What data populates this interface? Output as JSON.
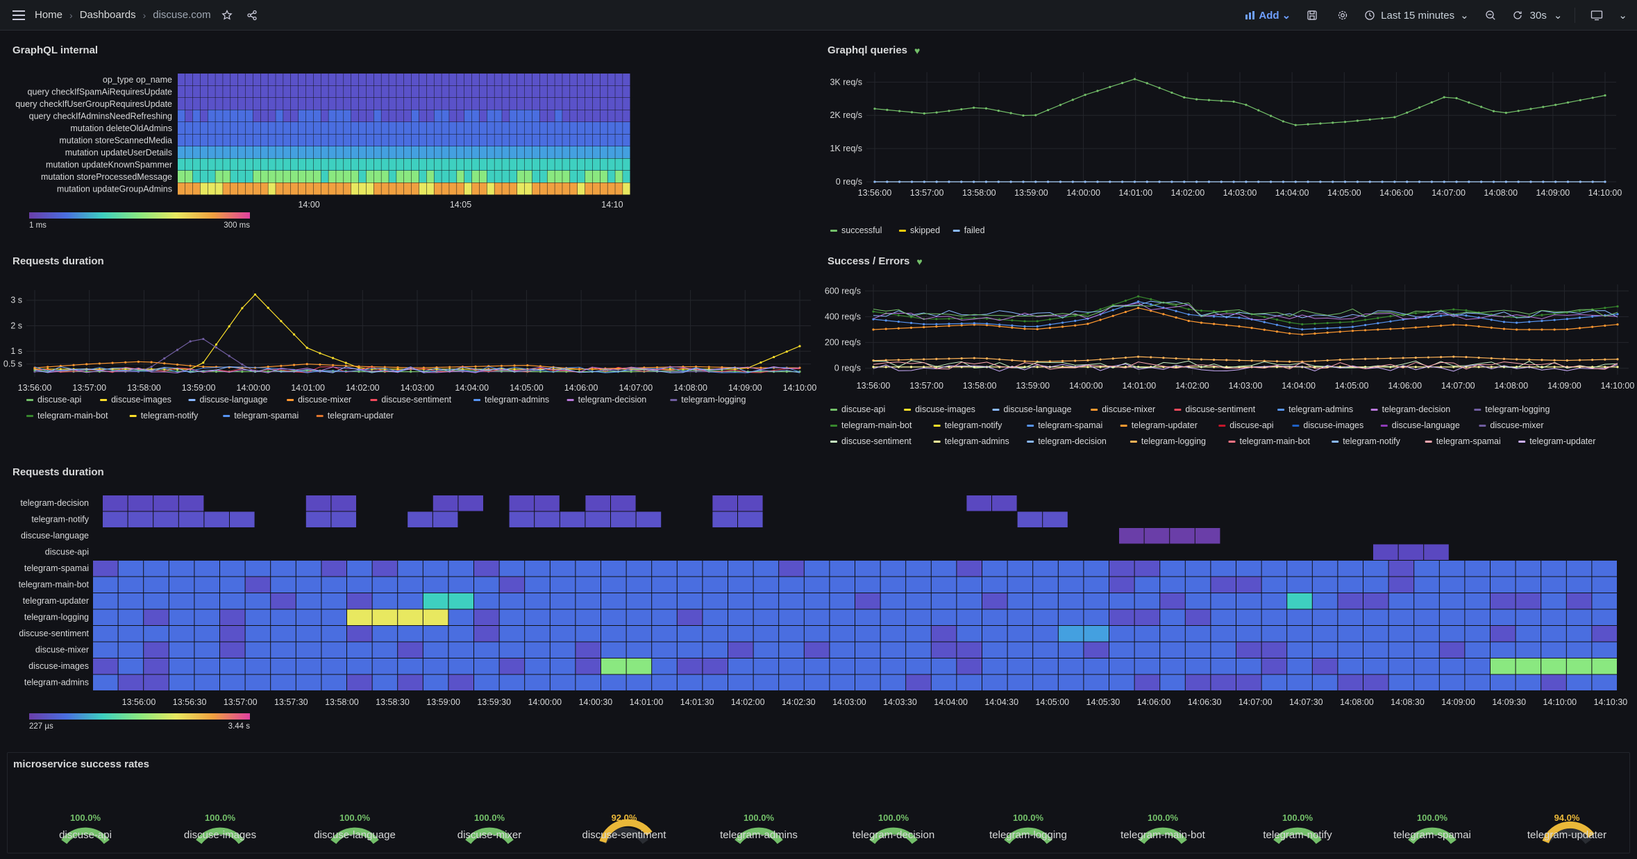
{
  "header": {
    "breadcrumbs": [
      "Home",
      "Dashboards",
      "discuse.com"
    ],
    "add_label": "Add",
    "time_range": "Last 15 minutes",
    "refresh_interval": "30s",
    "accent": "#6e9fff"
  },
  "panels": {
    "graphql_internal": {
      "title": "GraphQL internal",
      "row_labels": [
        "op_type op_name",
        "query checkIfSpamAiRequiresUpdate",
        "query checkIfUserGroupRequiresUpdate",
        "query checkIfAdminsNeedRefreshing",
        "mutation deleteOldAdmins",
        "mutation storeScannedMedia",
        "mutation updateUserDetails",
        "mutation updateKnownSpammer",
        "mutation storeProcessedMessage",
        "mutation updateGroupAdmins"
      ],
      "x_ticks": [
        "14:00",
        "14:05",
        "14:10"
      ],
      "scale_min": "1 ms",
      "scale_max": "300 ms"
    },
    "graphql_queries": {
      "title": "Graphql queries",
      "y_ticks": [
        "3K req/s",
        "2K req/s",
        "1K req/s",
        "0 req/s"
      ],
      "x_ticks": [
        "13:56:00",
        "13:57:00",
        "13:58:00",
        "13:59:00",
        "14:00:00",
        "14:01:00",
        "14:02:00",
        "14:03:00",
        "14:04:00",
        "14:05:00",
        "14:06:00",
        "14:07:00",
        "14:08:00",
        "14:09:00",
        "14:10:00"
      ],
      "legend": [
        {
          "name": "successful",
          "color": "#73bf69"
        },
        {
          "name": "skipped",
          "color": "#f2cc0c"
        },
        {
          "name": "failed",
          "color": "#8ab8ff"
        }
      ]
    },
    "requests_duration_ts": {
      "title": "Requests duration",
      "y_ticks": [
        "3 s",
        "2 s",
        "1 s",
        "0.5 s"
      ],
      "x_ticks": [
        "13:56:00",
        "13:57:00",
        "13:58:00",
        "13:59:00",
        "14:00:00",
        "14:01:00",
        "14:02:00",
        "14:03:00",
        "14:04:00",
        "14:05:00",
        "14:06:00",
        "14:07:00",
        "14:08:00",
        "14:09:00",
        "14:10:00"
      ],
      "legend": [
        {
          "name": "discuse-api",
          "color": "#73bf69"
        },
        {
          "name": "discuse-images",
          "color": "#fade2a"
        },
        {
          "name": "discuse-language",
          "color": "#8ab8ff"
        },
        {
          "name": "discuse-mixer",
          "color": "#ff9830"
        },
        {
          "name": "discuse-sentiment",
          "color": "#f2495c"
        },
        {
          "name": "telegram-admins",
          "color": "#5794f2"
        },
        {
          "name": "telegram-decision",
          "color": "#b877d9"
        },
        {
          "name": "telegram-logging",
          "color": "#705da0"
        },
        {
          "name": "telegram-main-bot",
          "color": "#37872d"
        },
        {
          "name": "telegram-notify",
          "color": "#fade2a"
        },
        {
          "name": "telegram-spamai",
          "color": "#5794f2"
        },
        {
          "name": "telegram-updater",
          "color": "#e0752d"
        }
      ]
    },
    "success_errors": {
      "title": "Success / Errors",
      "y_ticks": [
        "600 req/s",
        "400 req/s",
        "200 req/s",
        "0 req/s"
      ],
      "x_ticks": [
        "13:56:00",
        "13:57:00",
        "13:58:00",
        "13:59:00",
        "14:00:00",
        "14:01:00",
        "14:02:00",
        "14:03:00",
        "14:04:00",
        "14:05:00",
        "14:06:00",
        "14:07:00",
        "14:08:00",
        "14:09:00",
        "14:10:00"
      ],
      "legend": [
        {
          "name": "discuse-api",
          "color": "#73bf69"
        },
        {
          "name": "discuse-images",
          "color": "#fade2a"
        },
        {
          "name": "discuse-language",
          "color": "#8ab8ff"
        },
        {
          "name": "discuse-mixer",
          "color": "#ff9830"
        },
        {
          "name": "discuse-sentiment",
          "color": "#f2495c"
        },
        {
          "name": "telegram-admins",
          "color": "#5794f2"
        },
        {
          "name": "telegram-decision",
          "color": "#b877d9"
        },
        {
          "name": "telegram-logging",
          "color": "#705da0"
        },
        {
          "name": "telegram-main-bot",
          "color": "#37872d"
        },
        {
          "name": "telegram-notify",
          "color": "#fade2a"
        },
        {
          "name": "telegram-spamai",
          "color": "#5794f2"
        },
        {
          "name": "telegram-updater",
          "color": "#ff9830"
        },
        {
          "name": "discuse-api",
          "color": "#c4162a"
        },
        {
          "name": "discuse-images",
          "color": "#1f60c4"
        },
        {
          "name": "discuse-language",
          "color": "#8f3bb8"
        },
        {
          "name": "discuse-mixer",
          "color": "#705da0"
        },
        {
          "name": "discuse-sentiment",
          "color": "#c8f2c2"
        },
        {
          "name": "telegram-admins",
          "color": "#fff899"
        },
        {
          "name": "telegram-decision",
          "color": "#8ab8ff"
        },
        {
          "name": "telegram-logging",
          "color": "#ffb357"
        },
        {
          "name": "telegram-main-bot",
          "color": "#ff7383"
        },
        {
          "name": "telegram-notify",
          "color": "#8ab8ff"
        },
        {
          "name": "telegram-spamai",
          "color": "#ffa6b0"
        },
        {
          "name": "telegram-updater",
          "color": "#cdb0ff"
        }
      ]
    },
    "requests_duration_heatmap": {
      "title": "Requests duration",
      "row_labels": [
        "telegram-decision",
        "telegram-notify",
        "discuse-language",
        "discuse-api",
        "telegram-spamai",
        "telegram-main-bot",
        "telegram-updater",
        "telegram-logging",
        "discuse-sentiment",
        "discuse-mixer",
        "discuse-images",
        "telegram-admins"
      ],
      "x_ticks": [
        "13:56:00",
        "13:56:30",
        "13:57:00",
        "13:57:30",
        "13:58:00",
        "13:58:30",
        "13:59:00",
        "13:59:30",
        "14:00:00",
        "14:00:30",
        "14:01:00",
        "14:01:30",
        "14:02:00",
        "14:02:30",
        "14:03:00",
        "14:03:30",
        "14:04:00",
        "14:04:30",
        "14:05:00",
        "14:05:30",
        "14:06:00",
        "14:06:30",
        "14:07:00",
        "14:07:30",
        "14:08:00",
        "14:08:30",
        "14:09:00",
        "14:09:30",
        "14:10:00",
        "14:10:30"
      ],
      "scale_min": "227 µs",
      "scale_max": "3.44 s"
    },
    "success_rates": {
      "title": "microservice success rates",
      "gauges": [
        {
          "name": "discuse-api",
          "value": "100.0%",
          "pct": 100,
          "color": "#73bf69"
        },
        {
          "name": "discuse-images",
          "value": "100.0%",
          "pct": 100,
          "color": "#73bf69"
        },
        {
          "name": "discuse-language",
          "value": "100.0%",
          "pct": 100,
          "color": "#73bf69"
        },
        {
          "name": "discuse-mixer",
          "value": "100.0%",
          "pct": 100,
          "color": "#73bf69"
        },
        {
          "name": "discuse-sentiment",
          "value": "92.0%",
          "pct": 92,
          "color": "#eab839"
        },
        {
          "name": "telegram-admins",
          "value": "100.0%",
          "pct": 100,
          "color": "#73bf69"
        },
        {
          "name": "telegram-decision",
          "value": "100.0%",
          "pct": 100,
          "color": "#73bf69"
        },
        {
          "name": "telegram-logging",
          "value": "100.0%",
          "pct": 100,
          "color": "#73bf69"
        },
        {
          "name": "telegram-main-bot",
          "value": "100.0%",
          "pct": 100,
          "color": "#73bf69"
        },
        {
          "name": "telegram-notify",
          "value": "100.0%",
          "pct": 100,
          "color": "#73bf69"
        },
        {
          "name": "telegram-spamai",
          "value": "100.0%",
          "pct": 100,
          "color": "#73bf69"
        },
        {
          "name": "telegram-updater",
          "value": "94.0%",
          "pct": 94,
          "color": "#eab839"
        }
      ]
    }
  },
  "chart_data": [
    {
      "type": "heatmap",
      "title": "GraphQL internal",
      "rows": [
        "op_type op_name",
        "query checkIfSpamAiRequiresUpdate",
        "query checkIfUserGroupRequiresUpdate",
        "query checkIfAdminsNeedRefreshing",
        "mutation deleteOldAdmins",
        "mutation storeScannedMedia",
        "mutation updateUserDetails",
        "mutation updateKnownSpammer",
        "mutation storeProcessedMessage",
        "mutation updateGroupAdmins"
      ],
      "row_levels": [
        0.05,
        0.1,
        0.12,
        0.15,
        0.2,
        0.25,
        0.35,
        0.5,
        0.6,
        0.85
      ],
      "x_ticks": [
        "14:00",
        "14:05",
        "14:10"
      ],
      "scale": [
        "1 ms",
        "300 ms"
      ]
    },
    {
      "type": "line",
      "title": "Graphql queries",
      "ylim": [
        0,
        3300
      ],
      "x": [
        "13:56:00",
        "13:57:00",
        "13:58:00",
        "13:59:00",
        "14:00:00",
        "14:01:00",
        "14:02:00",
        "14:03:00",
        "14:04:00",
        "14:05:00",
        "14:06:00",
        "14:07:00",
        "14:08:00",
        "14:09:00",
        "14:10:00"
      ],
      "series": [
        {
          "name": "successful",
          "values": [
            2200,
            2050,
            2250,
            1950,
            2600,
            3100,
            2500,
            2400,
            1700,
            1800,
            1950,
            2600,
            2050,
            2300,
            2600
          ]
        },
        {
          "name": "skipped",
          "values": [
            0,
            0,
            0,
            0,
            0,
            0,
            0,
            0,
            0,
            0,
            0,
            0,
            0,
            0,
            0
          ]
        },
        {
          "name": "failed",
          "values": [
            0,
            0,
            0,
            0,
            0,
            0,
            0,
            0,
            0,
            0,
            0,
            0,
            0,
            0,
            0
          ]
        }
      ]
    },
    {
      "type": "line",
      "title": "Requests duration",
      "ylim": [
        0,
        3.4
      ],
      "x": [
        "13:56:00",
        "13:57:00",
        "13:58:00",
        "13:59:00",
        "14:00:00",
        "14:01:00",
        "14:02:00",
        "14:03:00",
        "14:04:00",
        "14:05:00",
        "14:06:00",
        "14:07:00",
        "14:08:00",
        "14:09:00",
        "14:10:00"
      ],
      "series": [
        {
          "name": "discuse-images",
          "values": [
            0.3,
            0.3,
            0.3,
            0.3,
            3.3,
            1.1,
            0.3,
            0.3,
            0.3,
            0.3,
            0.3,
            0.3,
            0.3,
            0.3,
            1.2
          ]
        },
        {
          "name": "telegram-logging",
          "values": [
            0.2,
            0.2,
            0.2,
            1.6,
            0.2,
            0.2,
            0.2,
            0.2,
            0.2,
            0.2,
            0.2,
            0.2,
            0.2,
            0.2,
            0.2
          ]
        },
        {
          "name": "discuse-mixer",
          "values": [
            0.35,
            0.5,
            0.6,
            0.4,
            0.35,
            0.5,
            0.4,
            0.35,
            0.4,
            0.45,
            0.3,
            0.35,
            0.4,
            0.35,
            0.35
          ]
        },
        {
          "name": "discuse-api",
          "values": [
            0.25,
            0.2,
            0.25,
            0.2,
            0.2,
            0.25,
            0.2,
            0.2,
            0.25,
            0.2,
            0.2,
            0.2,
            0.25,
            0.2,
            0.2
          ]
        }
      ]
    },
    {
      "type": "line",
      "title": "Success / Errors",
      "ylim": [
        -50,
        650
      ],
      "x": [
        "13:56:00",
        "13:57:00",
        "13:58:00",
        "13:59:00",
        "14:00:00",
        "14:01:00",
        "14:02:00",
        "14:03:00",
        "14:04:00",
        "14:05:00",
        "14:06:00",
        "14:07:00",
        "14:08:00",
        "14:09:00",
        "14:10:00"
      ],
      "series": [
        {
          "name": "telegram-main-bot",
          "values": [
            440,
            380,
            390,
            360,
            420,
            560,
            450,
            430,
            340,
            360,
            420,
            460,
            390,
            430,
            480
          ]
        },
        {
          "name": "telegram-updater",
          "values": [
            300,
            320,
            340,
            300,
            340,
            470,
            360,
            320,
            260,
            290,
            310,
            340,
            300,
            300,
            340
          ]
        },
        {
          "name": "telegram-spamai",
          "values": [
            380,
            340,
            350,
            320,
            380,
            520,
            410,
            390,
            300,
            320,
            380,
            420,
            350,
            380,
            420
          ]
        },
        {
          "name": "telegram-logging",
          "values": [
            60,
            70,
            80,
            50,
            60,
            90,
            70,
            60,
            50,
            70,
            80,
            90,
            70,
            60,
            70
          ]
        },
        {
          "name": "telegram-admins",
          "values": [
            10,
            10,
            10,
            10,
            10,
            10,
            10,
            10,
            10,
            10,
            10,
            10,
            10,
            10,
            10
          ]
        }
      ]
    },
    {
      "type": "heatmap",
      "title": "Requests duration",
      "rows": [
        "telegram-decision",
        "telegram-notify",
        "discuse-language",
        "discuse-api",
        "telegram-spamai",
        "telegram-main-bot",
        "telegram-updater",
        "telegram-logging",
        "discuse-sentiment",
        "discuse-mixer",
        "discuse-images",
        "telegram-admins"
      ],
      "x_ticks": [
        "13:56:00",
        "13:56:30",
        "13:57:00",
        "13:57:30",
        "13:58:00",
        "13:58:30",
        "13:59:00",
        "13:59:30",
        "14:00:00",
        "14:00:30",
        "14:01:00",
        "14:01:30",
        "14:02:00",
        "14:02:30",
        "14:03:00",
        "14:03:30",
        "14:04:00",
        "14:04:30",
        "14:05:00",
        "14:05:30",
        "14:06:00",
        "14:06:30",
        "14:07:00",
        "14:07:30",
        "14:08:00",
        "14:08:30",
        "14:09:00",
        "14:09:30",
        "14:10:00",
        "14:10:30"
      ],
      "scale": [
        "227 µs",
        "3.44 s"
      ]
    }
  ]
}
